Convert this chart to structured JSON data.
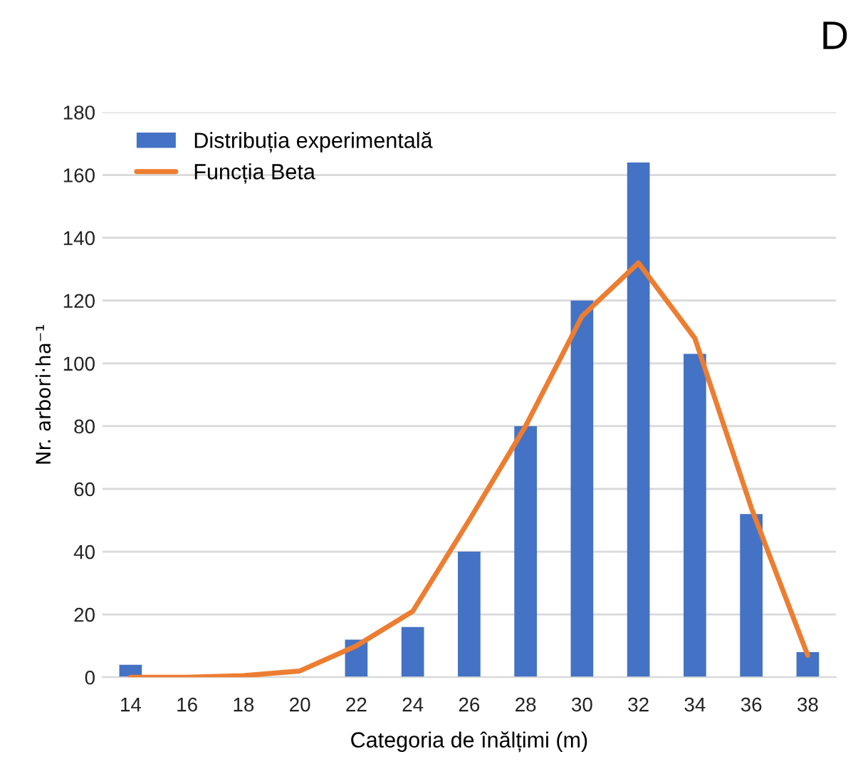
{
  "chart_data": {
    "type": "bar",
    "annotations": [
      "D"
    ],
    "xlabel": "Categoria de înălțimi (m)",
    "ylabel": "Nr. arbori·ha⁻¹",
    "categories": [
      "14",
      "16",
      "18",
      "20",
      "22",
      "24",
      "26",
      "28",
      "30",
      "32",
      "34",
      "36",
      "38"
    ],
    "series": [
      {
        "name": "Distribuția experimentală",
        "color": "#4472c4",
        "values": [
          4,
          0,
          0,
          0,
          12,
          16,
          40,
          80,
          120,
          164,
          103,
          52,
          8
        ]
      },
      {
        "name": "Funcția Beta",
        "type": "line",
        "color": "#ed7d31",
        "values": [
          0,
          0,
          0.5,
          2,
          10,
          21,
          50,
          80,
          115,
          132,
          108,
          54,
          7
        ]
      }
    ],
    "ylim": [
      0,
      180
    ],
    "yticks": [
      0,
      20,
      40,
      60,
      80,
      100,
      120,
      140,
      160,
      180
    ],
    "grid": "y",
    "legend": "top left"
  }
}
